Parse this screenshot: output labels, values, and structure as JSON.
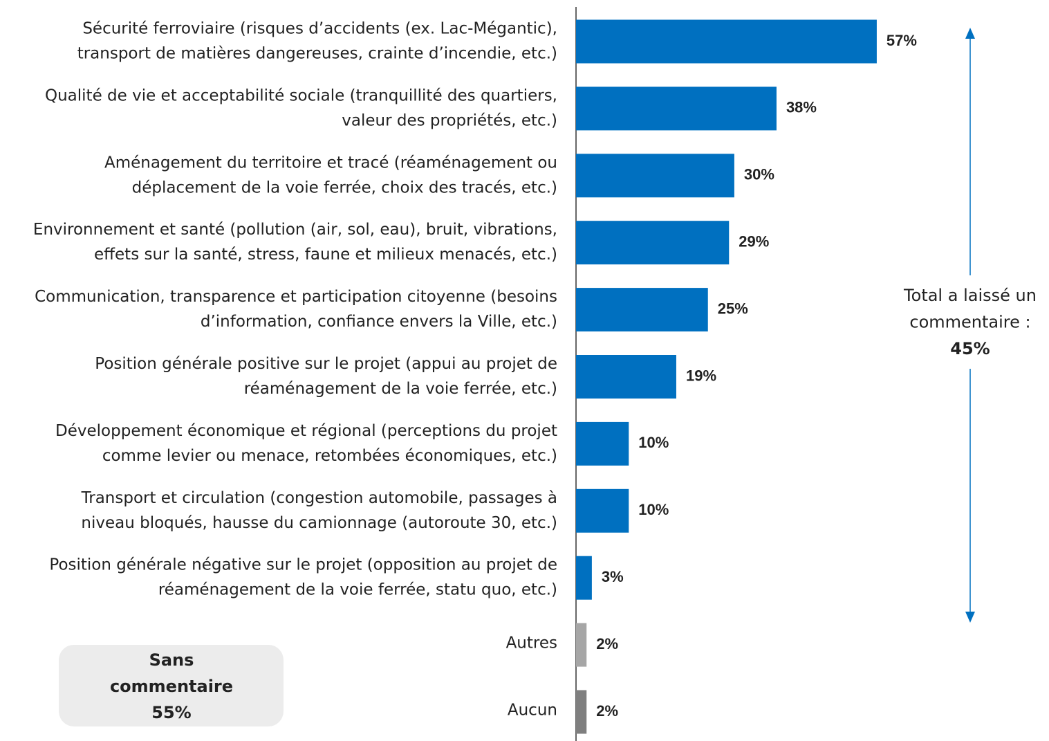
{
  "chart_data": {
    "type": "barh",
    "categories": [
      [
        "Sécurité ferroviaire (risques d’accidents (ex. Lac-Mégantic),",
        "transport de matières dangereuses, crainte d’incendie, etc.)"
      ],
      [
        "Qualité de vie et acceptabilité sociale (tranquillité des quartiers,",
        "valeur des propriétés, etc.)"
      ],
      [
        "Aménagement du territoire et tracé (réaménagement ou",
        "déplacement de la voie ferrée, choix des tracés, etc.)"
      ],
      [
        "Environnement et santé (pollution (air, sol, eau), bruit, vibrations,",
        "effets sur la santé, stress, faune et milieux menacés, etc.)"
      ],
      [
        "Communication, transparence et participation citoyenne (besoins",
        "d’information, confiance envers la Ville, etc.)"
      ],
      [
        "Position générale positive sur le projet (appui au projet de",
        "réaménagement de la voie ferrée, etc.)"
      ],
      [
        "Développement économique et régional (perceptions du projet",
        "comme levier ou menace, retombées économiques, etc.)"
      ],
      [
        "Transport et circulation (congestion automobile, passages à",
        "niveau bloqués, hausse du camionnage (autoroute 30, etc.)"
      ],
      [
        "Position générale négative sur le projet (opposition au projet de",
        "réaménagement de la voie ferrée, statu quo, etc.)"
      ],
      [
        "Autres"
      ],
      [
        "Aucun"
      ]
    ],
    "values": [
      57,
      38,
      30,
      29,
      25,
      19,
      10,
      10,
      3,
      2,
      2
    ],
    "value_labels": [
      "57%",
      "38%",
      "30%",
      "29%",
      "25%",
      "19%",
      "10%",
      "10%",
      "3%",
      "2%",
      "2%"
    ],
    "colors": [
      "#0070c0",
      "#0070c0",
      "#0070c0",
      "#0070c0",
      "#0070c0",
      "#0070c0",
      "#0070c0",
      "#0070c0",
      "#0070c0",
      "#a6a6a6",
      "#7f7f7f"
    ],
    "annotations": [
      {
        "lines": [
          "Total a laissé un",
          "commentaire :",
          "45%"
        ]
      },
      {
        "lines": [
          "Sans",
          "commentaire",
          "55%"
        ]
      }
    ]
  }
}
